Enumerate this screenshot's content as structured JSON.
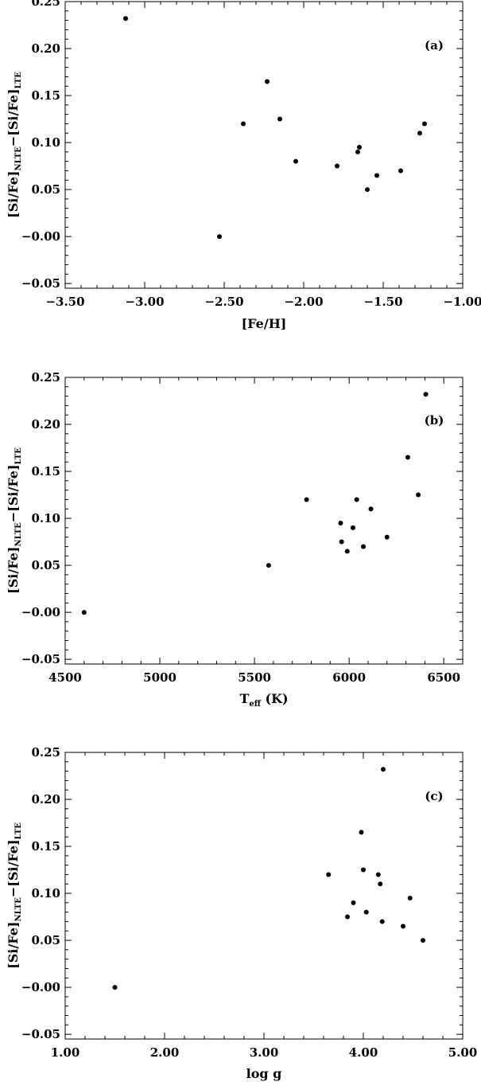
{
  "chart_data": [
    {
      "type": "scatter",
      "panel_label": "(a)",
      "xlabel": "[Fe/H]",
      "ylabel": {
        "main": "[Si/Fe]",
        "sub1": "NLTE",
        "mid": "−[Si/Fe]",
        "sub2": "LTE"
      },
      "xlim": [
        -3.5,
        -1.0
      ],
      "ylim": [
        -0.055,
        0.25
      ],
      "xticks": [
        -3.5,
        -3.0,
        -2.5,
        -2.0,
        -1.5,
        -1.0
      ],
      "xtick_labels": [
        "−3.50",
        "−3.00",
        "−2.50",
        "−2.00",
        "−1.50",
        "−1.00"
      ],
      "yticks": [
        -0.05,
        0.0,
        0.05,
        0.1,
        0.15,
        0.2,
        0.25
      ],
      "ytick_labels": [
        "−0.05",
        "−0.00",
        "0.05",
        "0.10",
        "0.15",
        "0.20",
        "0.25"
      ],
      "points": [
        {
          "x": -3.12,
          "y": 0.232
        },
        {
          "x": -2.53,
          "y": 0.0
        },
        {
          "x": -2.38,
          "y": 0.12
        },
        {
          "x": -2.23,
          "y": 0.165
        },
        {
          "x": -2.15,
          "y": 0.125
        },
        {
          "x": -2.05,
          "y": 0.08
        },
        {
          "x": -1.79,
          "y": 0.075
        },
        {
          "x": -1.66,
          "y": 0.09
        },
        {
          "x": -1.65,
          "y": 0.095
        },
        {
          "x": -1.6,
          "y": 0.05
        },
        {
          "x": -1.54,
          "y": 0.065
        },
        {
          "x": -1.39,
          "y": 0.07
        },
        {
          "x": -1.27,
          "y": 0.11
        },
        {
          "x": -1.24,
          "y": 0.12
        }
      ]
    },
    {
      "type": "scatter",
      "panel_label": "(b)",
      "xlabel": {
        "main": "T",
        "sub": "eff",
        "tail": " (K)"
      },
      "ylabel": {
        "main": "[Si/Fe]",
        "sub1": "NLTE",
        "mid": "−[Si/Fe]",
        "sub2": "LTE"
      },
      "xlim": [
        4500,
        6600
      ],
      "ylim": [
        -0.055,
        0.25
      ],
      "xticks": [
        4500,
        5000,
        5500,
        6000,
        6500
      ],
      "xtick_labels": [
        "4500",
        "5000",
        "5500",
        "6000",
        "6500"
      ],
      "yticks": [
        -0.05,
        0.0,
        0.05,
        0.1,
        0.15,
        0.2,
        0.25
      ],
      "ytick_labels": [
        "−0.05",
        "−0.00",
        "0.05",
        "0.10",
        "0.15",
        "0.20",
        "0.25"
      ],
      "points": [
        {
          "x": 4600,
          "y": 0.0
        },
        {
          "x": 5575,
          "y": 0.05
        },
        {
          "x": 5775,
          "y": 0.12
        },
        {
          "x": 5955,
          "y": 0.095
        },
        {
          "x": 5960,
          "y": 0.075
        },
        {
          "x": 5990,
          "y": 0.065
        },
        {
          "x": 6020,
          "y": 0.09
        },
        {
          "x": 6040,
          "y": 0.12
        },
        {
          "x": 6075,
          "y": 0.07
        },
        {
          "x": 6115,
          "y": 0.11
        },
        {
          "x": 6200,
          "y": 0.08
        },
        {
          "x": 6310,
          "y": 0.165
        },
        {
          "x": 6365,
          "y": 0.125
        },
        {
          "x": 6405,
          "y": 0.232
        }
      ]
    },
    {
      "type": "scatter",
      "panel_label": "(c)",
      "xlabel": "log g",
      "ylabel": {
        "main": "[Si/Fe]",
        "sub1": "NLTE",
        "mid": "−[Si/Fe]",
        "sub2": "LTE"
      },
      "xlim": [
        1.0,
        5.0
      ],
      "ylim": [
        -0.055,
        0.25
      ],
      "xticks": [
        1.0,
        2.0,
        3.0,
        4.0,
        5.0
      ],
      "xtick_labels": [
        "1.00",
        "2.00",
        "3.00",
        "4.00",
        "5.00"
      ],
      "yticks": [
        -0.05,
        0.0,
        0.05,
        0.1,
        0.15,
        0.2,
        0.25
      ],
      "ytick_labels": [
        "−0.05",
        "−0.00",
        "0.05",
        "0.10",
        "0.15",
        "0.20",
        "0.25"
      ],
      "points": [
        {
          "x": 1.5,
          "y": 0.0
        },
        {
          "x": 3.65,
          "y": 0.12
        },
        {
          "x": 3.84,
          "y": 0.075
        },
        {
          "x": 3.9,
          "y": 0.09
        },
        {
          "x": 3.98,
          "y": 0.165
        },
        {
          "x": 4.0,
          "y": 0.125
        },
        {
          "x": 4.03,
          "y": 0.08
        },
        {
          "x": 4.15,
          "y": 0.12
        },
        {
          "x": 4.17,
          "y": 0.11
        },
        {
          "x": 4.19,
          "y": 0.07
        },
        {
          "x": 4.2,
          "y": 0.232
        },
        {
          "x": 4.4,
          "y": 0.065
        },
        {
          "x": 4.47,
          "y": 0.095
        },
        {
          "x": 4.6,
          "y": 0.05
        }
      ]
    }
  ]
}
